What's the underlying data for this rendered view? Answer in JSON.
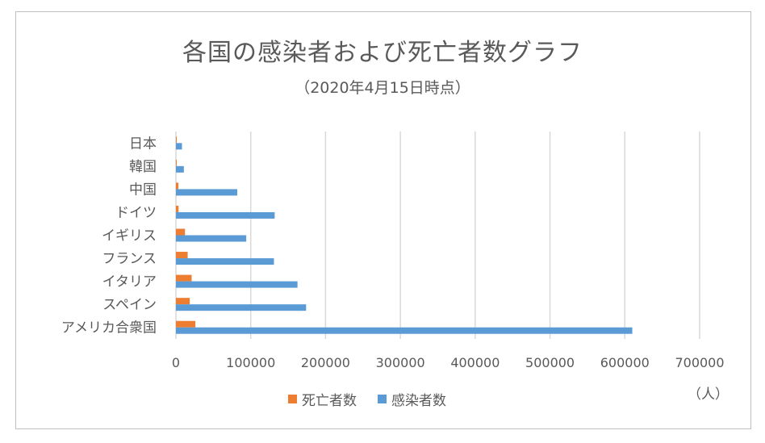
{
  "chart_data": {
    "type": "bar",
    "orientation": "horizontal",
    "title": "各国の感染者および死亡者数グラフ",
    "subtitle": "（2020年4月15日時点）",
    "unit_label": "（人）",
    "categories": [
      "アメリカ合衆国",
      "スペイン",
      "イタリア",
      "フランス",
      "イギリス",
      "ドイツ",
      "中国",
      "韓国",
      "日本"
    ],
    "series": [
      {
        "name": "死亡者数",
        "color": "#ED7D31",
        "values": [
          26000,
          18500,
          21000,
          15700,
          12100,
          3500,
          3300,
          230,
          110
        ]
      },
      {
        "name": "感染者数",
        "color": "#5B9BD5",
        "values": [
          610000,
          174000,
          162500,
          131000,
          94000,
          132000,
          82000,
          10600,
          8100
        ]
      }
    ],
    "xlim": [
      0,
      700000
    ],
    "xticks": [
      "0",
      "100000",
      "200000",
      "300000",
      "400000",
      "500000",
      "600000",
      "700000"
    ],
    "grid": true,
    "legend_position": "bottom"
  }
}
